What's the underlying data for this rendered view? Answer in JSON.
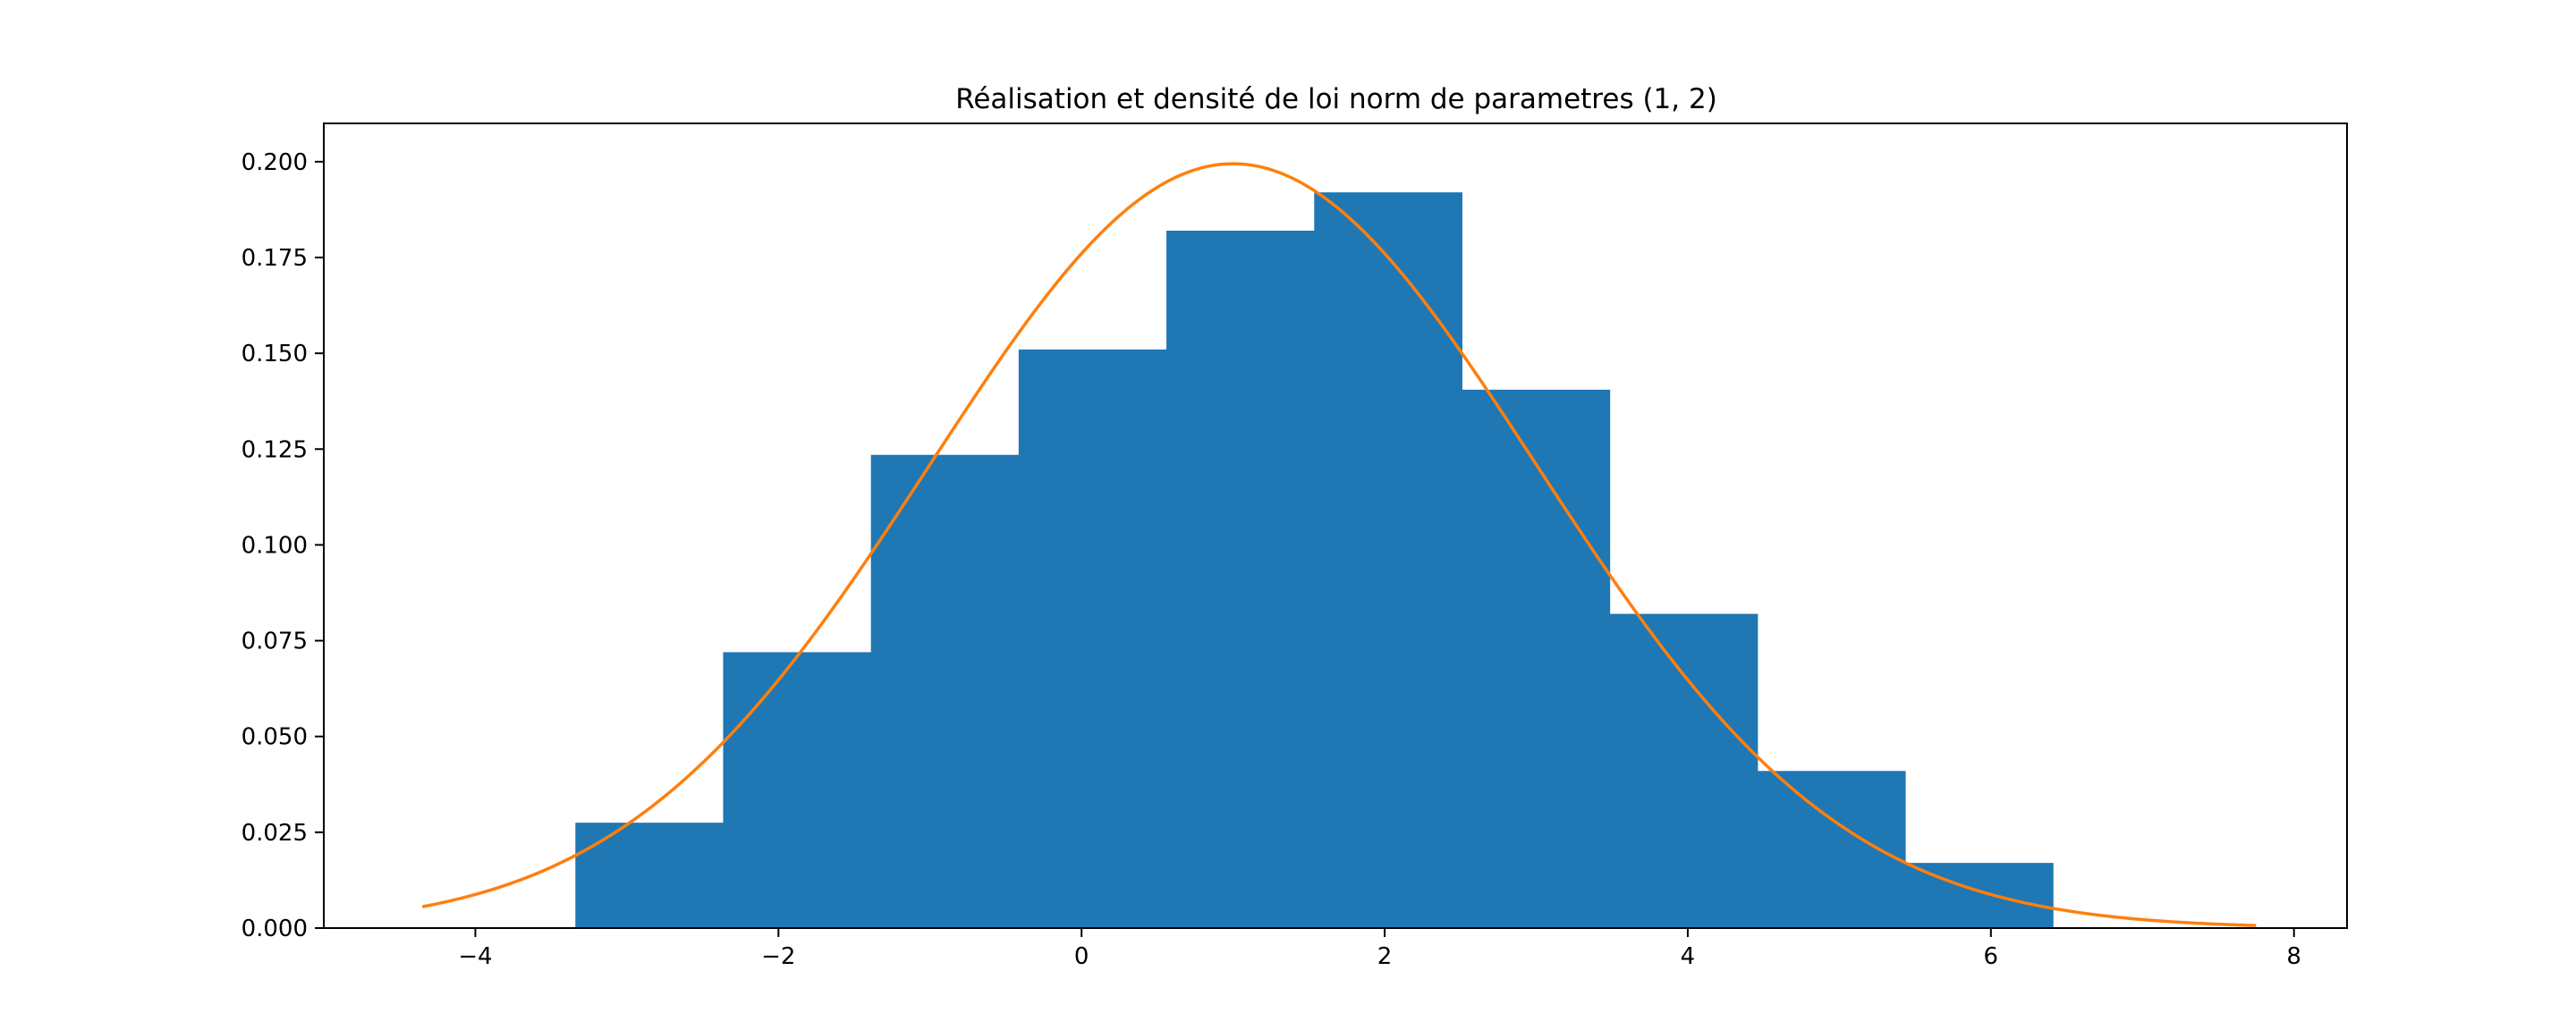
{
  "chart_data": {
    "type": "bar",
    "title": "Réalisation et densité de loi norm de parametres  (1, 2)",
    "xlabel": "",
    "ylabel": "",
    "xlim": [
      -5.0,
      8.35
    ],
    "ylim": [
      0.0,
      0.21
    ],
    "xticks": [
      -4,
      -2,
      0,
      2,
      4,
      6,
      8
    ],
    "xtick_labels": [
      "−4",
      "−2",
      "0",
      "2",
      "4",
      "6",
      "8"
    ],
    "yticks": [
      0.0,
      0.025,
      0.05,
      0.075,
      0.1,
      0.125,
      0.15,
      0.175,
      0.2
    ],
    "ytick_labels": [
      "0.000",
      "0.025",
      "0.050",
      "0.075",
      "0.100",
      "0.125",
      "0.150",
      "0.175",
      "0.200"
    ],
    "grid": false,
    "histogram": {
      "bin_edges": [
        -3.34,
        -2.365,
        -1.39,
        -0.415,
        0.56,
        1.535,
        2.51,
        3.485,
        4.46,
        5.435,
        6.41
      ],
      "values": [
        0.0275,
        0.072,
        0.1235,
        0.151,
        0.182,
        0.192,
        0.1405,
        0.082,
        0.041,
        0.017
      ],
      "color": "#1f77b4"
    },
    "density_curve": {
      "distribution": "norm",
      "mean": 1,
      "std": 2,
      "x_range": [
        -4.35,
        7.75
      ],
      "color": "#ff7f0e"
    }
  }
}
